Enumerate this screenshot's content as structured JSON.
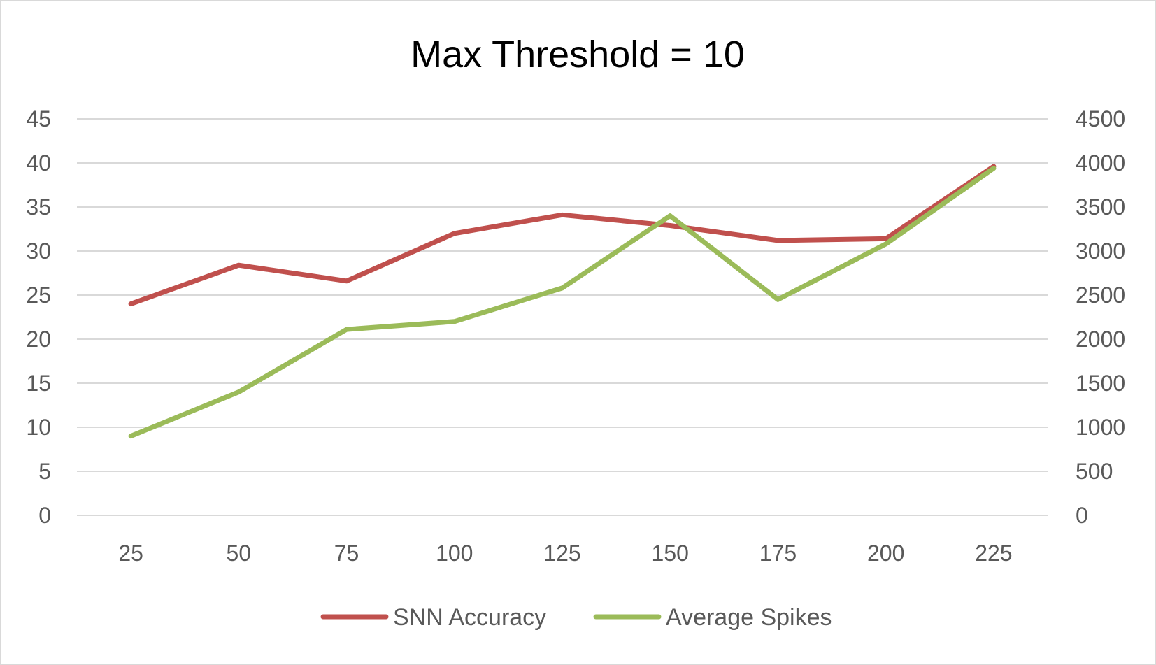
{
  "chart_data": {
    "type": "line",
    "title": "Max Threshold = 10",
    "x": [
      25,
      50,
      75,
      100,
      125,
      150,
      175,
      200,
      225
    ],
    "categories": [
      "25",
      "50",
      "75",
      "100",
      "125",
      "150",
      "175",
      "200",
      "225"
    ],
    "y_left": {
      "ylim": [
        0,
        45
      ],
      "ticks": [
        0,
        5,
        10,
        15,
        20,
        25,
        30,
        35,
        40,
        45
      ]
    },
    "y_right": {
      "ylim": [
        0,
        4500
      ],
      "ticks": [
        0,
        500,
        1000,
        1500,
        2000,
        2500,
        3000,
        3500,
        4000,
        4500
      ]
    },
    "series": [
      {
        "name": "SNN Accuracy",
        "axis": "left",
        "color": "#c0504d",
        "values": [
          24.0,
          28.4,
          26.6,
          32.0,
          34.1,
          32.9,
          31.2,
          31.4,
          39.6
        ]
      },
      {
        "name": "Average Spikes",
        "axis": "right",
        "color": "#9bbb59",
        "values": [
          900,
          1400,
          2110,
          2200,
          2580,
          3400,
          2450,
          3080,
          3940
        ]
      }
    ],
    "grid": true,
    "legend": "bottom"
  }
}
